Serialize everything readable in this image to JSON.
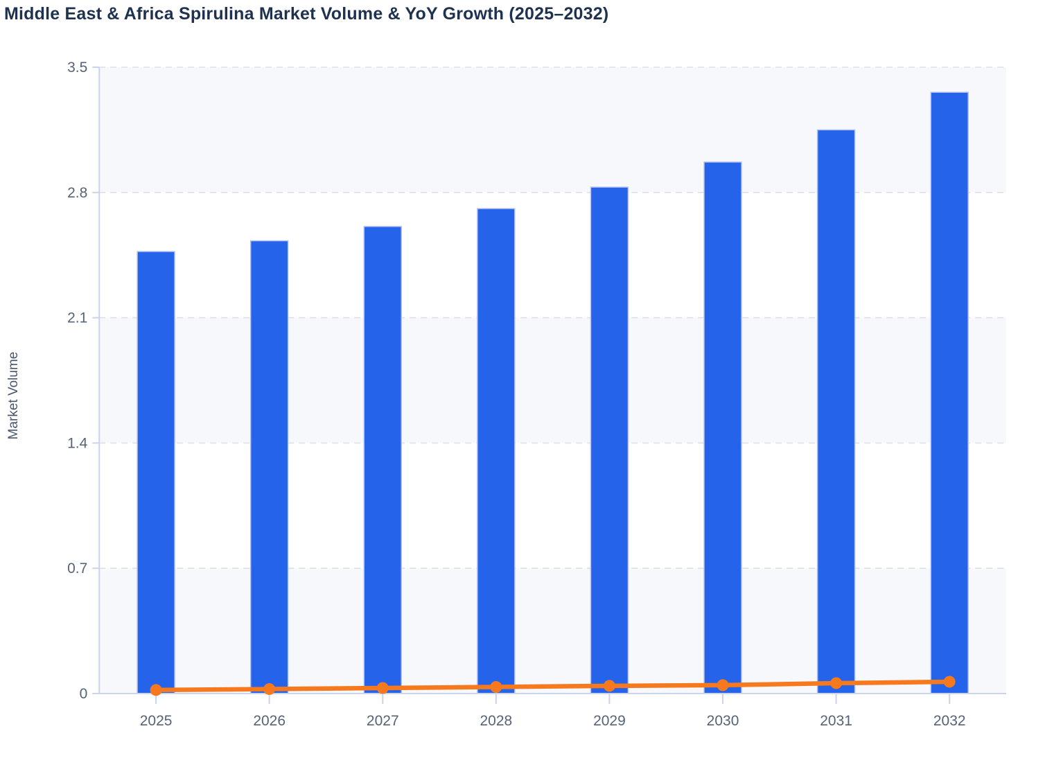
{
  "page": {
    "title": "Middle East & Africa Spirulina Market Volume & YoY Growth (2025–2032)"
  },
  "chart_data": {
    "type": "combo",
    "subtype": "bar+line",
    "title": "Middle East & Africa Spirulina Market Volume & YoY Growth (2025–2032)",
    "xlabel": "",
    "ylabel": "Market Volume",
    "categories": [
      "2025",
      "2026",
      "2027",
      "2028",
      "2029",
      "2030",
      "2031",
      "2032"
    ],
    "series": [
      {
        "name": "Market Volume",
        "type": "bar",
        "color": "#2563eb",
        "border_color": "#b6c2ec",
        "values": [
          2.47,
          2.53,
          2.61,
          2.71,
          2.83,
          2.97,
          3.15,
          3.36
        ]
      },
      {
        "name": "YoY Growth",
        "type": "line",
        "color": "#f7791e",
        "marker": "circle",
        "values": [
          0.02,
          0.025,
          0.031,
          0.037,
          0.043,
          0.047,
          0.058,
          0.066
        ]
      }
    ],
    "ylim": [
      0,
      3.5
    ],
    "yticks": [
      0,
      0.7,
      1.4,
      2.1,
      2.8,
      3.5
    ],
    "ytick_labels": [
      "0",
      "0.7",
      "1.4",
      "2.1",
      "2.8",
      "3.5"
    ],
    "legend": "none",
    "grid": "horizontal dashed",
    "style": {
      "band_fill": "#f7f8fc",
      "grid_color": "#dcdfe8",
      "axis_line_color": "#c9d3ee",
      "tick_label_color": "#566377",
      "title_color": "#1e3250",
      "ylabel_color": "#4a566e",
      "background": "#ffffff"
    }
  }
}
